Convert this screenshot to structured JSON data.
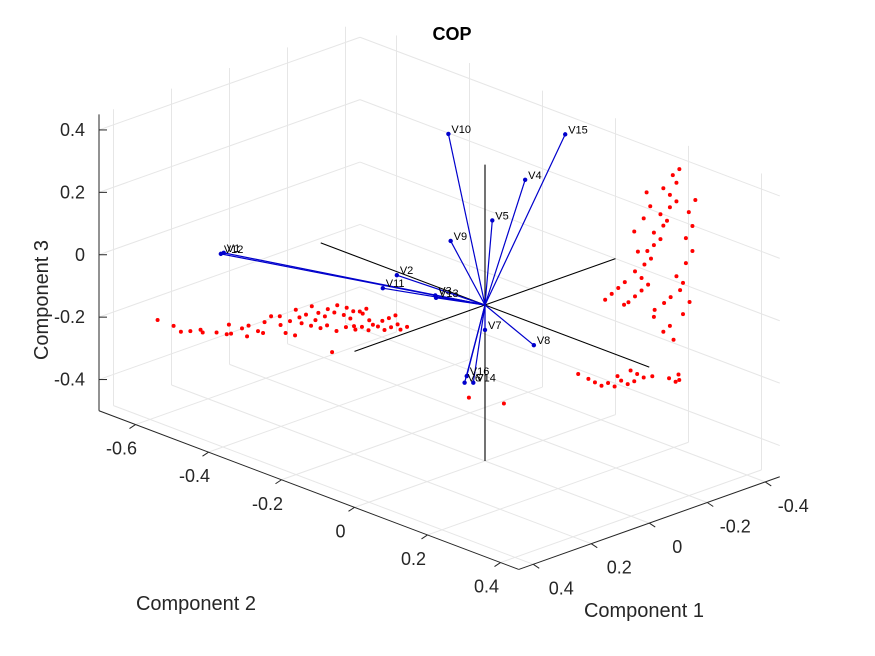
{
  "chart_data": {
    "type": "scatter",
    "title": "COP",
    "xlabel": "Component 1",
    "ylabel": "Component 2",
    "zlabel": "Component 3",
    "xticks": [
      "-0.6",
      "-0.4",
      "-0.2",
      "0",
      "0.2",
      "0.4"
    ],
    "yticks": [
      "-0.4",
      "-0.2",
      "0",
      "0.2",
      "0.4"
    ],
    "zticks": [
      "-0.4",
      "-0.2",
      "0",
      "0.2",
      "0.4"
    ],
    "xlim": [
      -0.7,
      0.45
    ],
    "ylim": [
      -0.45,
      0.45
    ],
    "zlim": [
      -0.5,
      0.45
    ],
    "grid": true,
    "loadings": [
      {
        "name": "V1",
        "x": -0.39,
        "y": 0.41,
        "z": 0.13
      },
      {
        "name": "V2",
        "x": -0.17,
        "y": 0.09,
        "z": 0.05
      },
      {
        "name": "V3",
        "x": -0.16,
        "y": -0.03,
        "z": -0.05
      },
      {
        "name": "V4",
        "x": 0.11,
        "y": 0.0,
        "z": 0.45
      },
      {
        "name": "V5",
        "x": 0.02,
        "y": 0.0,
        "z": 0.28
      },
      {
        "name": "V6",
        "x": -0.04,
        "y": 0.02,
        "z": -0.26
      },
      {
        "name": "V7",
        "x": 0.0,
        "y": 0.0,
        "z": -0.08
      },
      {
        "name": "V8",
        "x": 0.11,
        "y": -0.03,
        "z": -0.09
      },
      {
        "name": "V9",
        "x": -0.11,
        "y": -0.02,
        "z": 0.15
      },
      {
        "name": "V10",
        "x": -0.14,
        "y": -0.05,
        "z": 0.47
      },
      {
        "name": "V11",
        "x": -0.28,
        "y": 0.0,
        "z": -0.07
      },
      {
        "name": "V12",
        "x": -0.39,
        "y": 0.42,
        "z": 0.13
      },
      {
        "name": "V13",
        "x": -0.15,
        "y": -0.02,
        "z": -0.05
      },
      {
        "name": "V14",
        "x": -0.04,
        "y": -0.01,
        "z": -0.27
      },
      {
        "name": "V15",
        "x": 0.18,
        "y": -0.05,
        "z": 0.61
      },
      {
        "name": "V16",
        "x": -0.05,
        "y": 0.0,
        "z": -0.25
      }
    ],
    "scores": [
      [
        -0.46,
        0.55,
        -0.07
      ],
      [
        -0.44,
        0.52,
        -0.09
      ],
      [
        -0.42,
        0.52,
        -0.1
      ],
      [
        -0.41,
        0.5,
        -0.1
      ],
      [
        -0.4,
        0.47,
        -0.11
      ],
      [
        -0.39,
        0.49,
        -0.09
      ],
      [
        -0.37,
        0.46,
        -0.1
      ],
      [
        -0.36,
        0.43,
        -0.08
      ],
      [
        -0.35,
        0.45,
        -0.1
      ],
      [
        -0.34,
        0.41,
        -0.09
      ],
      [
        -0.33,
        0.4,
        -0.08
      ],
      [
        -0.32,
        0.38,
        -0.1
      ],
      [
        -0.31,
        0.37,
        -0.07
      ],
      [
        -0.3,
        0.36,
        -0.05
      ],
      [
        -0.3,
        0.33,
        -0.06
      ],
      [
        -0.29,
        0.34,
        -0.08
      ],
      [
        -0.28,
        0.32,
        -0.07
      ],
      [
        -0.28,
        0.3,
        -0.04
      ],
      [
        -0.27,
        0.3,
        -0.06
      ],
      [
        -0.26,
        0.29,
        -0.05
      ],
      [
        -0.26,
        0.27,
        -0.03
      ],
      [
        -0.25,
        0.27,
        -0.07
      ],
      [
        -0.25,
        0.26,
        -0.05
      ],
      [
        -0.24,
        0.25,
        -0.06
      ],
      [
        -0.24,
        0.24,
        -0.04
      ],
      [
        -0.23,
        0.23,
        -0.05
      ],
      [
        -0.23,
        0.22,
        -0.03
      ],
      [
        -0.22,
        0.21,
        -0.06
      ],
      [
        -0.22,
        0.2,
        -0.04
      ],
      [
        -0.21,
        0.19,
        -0.05
      ],
      [
        -0.21,
        0.2,
        -0.07
      ],
      [
        -0.2,
        0.18,
        -0.05
      ],
      [
        -0.2,
        0.17,
        -0.06
      ],
      [
        -0.19,
        0.16,
        -0.08
      ],
      [
        -0.19,
        0.17,
        -0.04
      ],
      [
        -0.28,
        0.28,
        -0.09
      ],
      [
        -0.27,
        0.26,
        -0.1
      ],
      [
        -0.26,
        0.24,
        -0.11
      ],
      [
        -0.25,
        0.23,
        -0.1
      ],
      [
        -0.24,
        0.21,
        -0.12
      ],
      [
        -0.23,
        0.19,
        -0.11
      ],
      [
        -0.22,
        0.17,
        -0.12
      ],
      [
        -0.21,
        0.16,
        -0.11
      ],
      [
        -0.2,
        0.15,
        -0.12
      ],
      [
        -0.19,
        0.13,
        -0.11
      ],
      [
        -0.18,
        0.12,
        -0.12
      ],
      [
        -0.17,
        0.11,
        -0.11
      ],
      [
        -0.16,
        0.09,
        -0.12
      ],
      [
        -0.16,
        0.1,
        -0.1
      ],
      [
        -0.15,
        0.08,
        -0.11
      ],
      [
        -0.3,
        0.31,
        -0.12
      ],
      [
        -0.29,
        0.29,
        -0.13
      ],
      [
        -0.33,
        0.35,
        -0.12
      ],
      [
        -0.35,
        0.38,
        -0.13
      ],
      [
        -0.37,
        0.41,
        -0.12
      ],
      [
        -0.2,
        0.2,
        -0.09
      ],
      [
        -0.18,
        0.16,
        -0.09
      ],
      [
        -0.17,
        0.14,
        -0.08
      ],
      [
        -0.16,
        0.13,
        -0.07
      ],
      [
        -0.15,
        0.12,
        -0.06
      ],
      [
        -0.26,
        0.2,
        -0.2
      ],
      [
        0.25,
        -0.18,
        0.06
      ],
      [
        0.26,
        -0.19,
        0.08
      ],
      [
        0.27,
        -0.2,
        0.1
      ],
      [
        0.28,
        -0.21,
        0.12
      ],
      [
        0.27,
        -0.2,
        0.14
      ],
      [
        0.26,
        -0.19,
        0.16
      ],
      [
        0.27,
        -0.21,
        0.18
      ],
      [
        0.28,
        -0.22,
        0.2
      ],
      [
        0.27,
        -0.22,
        0.22
      ],
      [
        0.28,
        -0.23,
        0.24
      ],
      [
        0.29,
        -0.24,
        0.26
      ],
      [
        0.28,
        -0.23,
        0.28
      ],
      [
        0.29,
        -0.25,
        0.3
      ],
      [
        0.3,
        -0.25,
        0.32
      ],
      [
        0.29,
        -0.24,
        0.34
      ],
      [
        0.3,
        -0.26,
        0.36
      ],
      [
        0.31,
        -0.27,
        0.38
      ],
      [
        0.3,
        -0.26,
        0.4
      ],
      [
        0.29,
        -0.25,
        0.42
      ],
      [
        0.31,
        -0.27,
        0.44
      ],
      [
        0.3,
        -0.27,
        0.46
      ],
      [
        0.31,
        -0.28,
        0.48
      ],
      [
        0.32,
        -0.28,
        0.12
      ],
      [
        0.31,
        -0.27,
        0.14
      ],
      [
        0.32,
        -0.29,
        0.18
      ],
      [
        0.33,
        -0.3,
        0.22
      ],
      [
        0.32,
        -0.29,
        0.26
      ],
      [
        0.33,
        -0.3,
        0.3
      ],
      [
        0.32,
        -0.3,
        0.34
      ],
      [
        0.33,
        -0.31,
        0.38
      ],
      [
        0.26,
        -0.2,
        0.22
      ],
      [
        0.25,
        -0.2,
        0.28
      ],
      [
        0.26,
        -0.22,
        0.32
      ],
      [
        0.27,
        -0.23,
        0.36
      ],
      [
        0.26,
        -0.23,
        0.4
      ],
      [
        0.24,
        -0.18,
        0.12
      ],
      [
        0.23,
        -0.17,
        0.1
      ],
      [
        0.22,
        -0.16,
        0.08
      ],
      [
        0.21,
        -0.15,
        0.06
      ],
      [
        0.23,
        -0.19,
        0.04
      ],
      [
        0.29,
        -0.22,
        0.04
      ],
      [
        0.3,
        -0.24,
        0.06
      ],
      [
        0.31,
        -0.25,
        0.08
      ],
      [
        0.32,
        -0.27,
        0.1
      ],
      [
        0.33,
        -0.29,
        0.06
      ],
      [
        0.3,
        -0.26,
        -0.02
      ],
      [
        0.29,
        -0.25,
        -0.04
      ],
      [
        0.31,
        -0.26,
        -0.06
      ],
      [
        0.28,
        -0.23,
        0.01
      ],
      [
        0.32,
        -0.28,
        0.02
      ],
      [
        0.18,
        -0.13,
        -0.2
      ],
      [
        0.19,
        -0.14,
        -0.21
      ],
      [
        0.2,
        -0.15,
        -0.22
      ],
      [
        0.21,
        -0.16,
        -0.21
      ],
      [
        0.22,
        -0.17,
        -0.22
      ],
      [
        0.23,
        -0.18,
        -0.2
      ],
      [
        0.24,
        -0.19,
        -0.21
      ],
      [
        0.25,
        -0.2,
        -0.2
      ],
      [
        0.25,
        -0.21,
        -0.18
      ],
      [
        0.24,
        -0.2,
        -0.17
      ],
      [
        0.16,
        -0.12,
        -0.19
      ],
      [
        0.26,
        -0.22,
        -0.19
      ],
      [
        0.22,
        -0.18,
        -0.19
      ],
      [
        0.25,
        -0.32,
        -0.23
      ],
      [
        0.26,
        -0.33,
        -0.24
      ],
      [
        0.27,
        -0.33,
        -0.23
      ],
      [
        0.26,
        -0.34,
        -0.22
      ],
      [
        0.22,
        -0.3,
        -0.23
      ],
      [
        -0.06,
        -0.02,
        -0.33
      ],
      [
        0.02,
        -0.04,
        -0.32
      ]
    ]
  }
}
